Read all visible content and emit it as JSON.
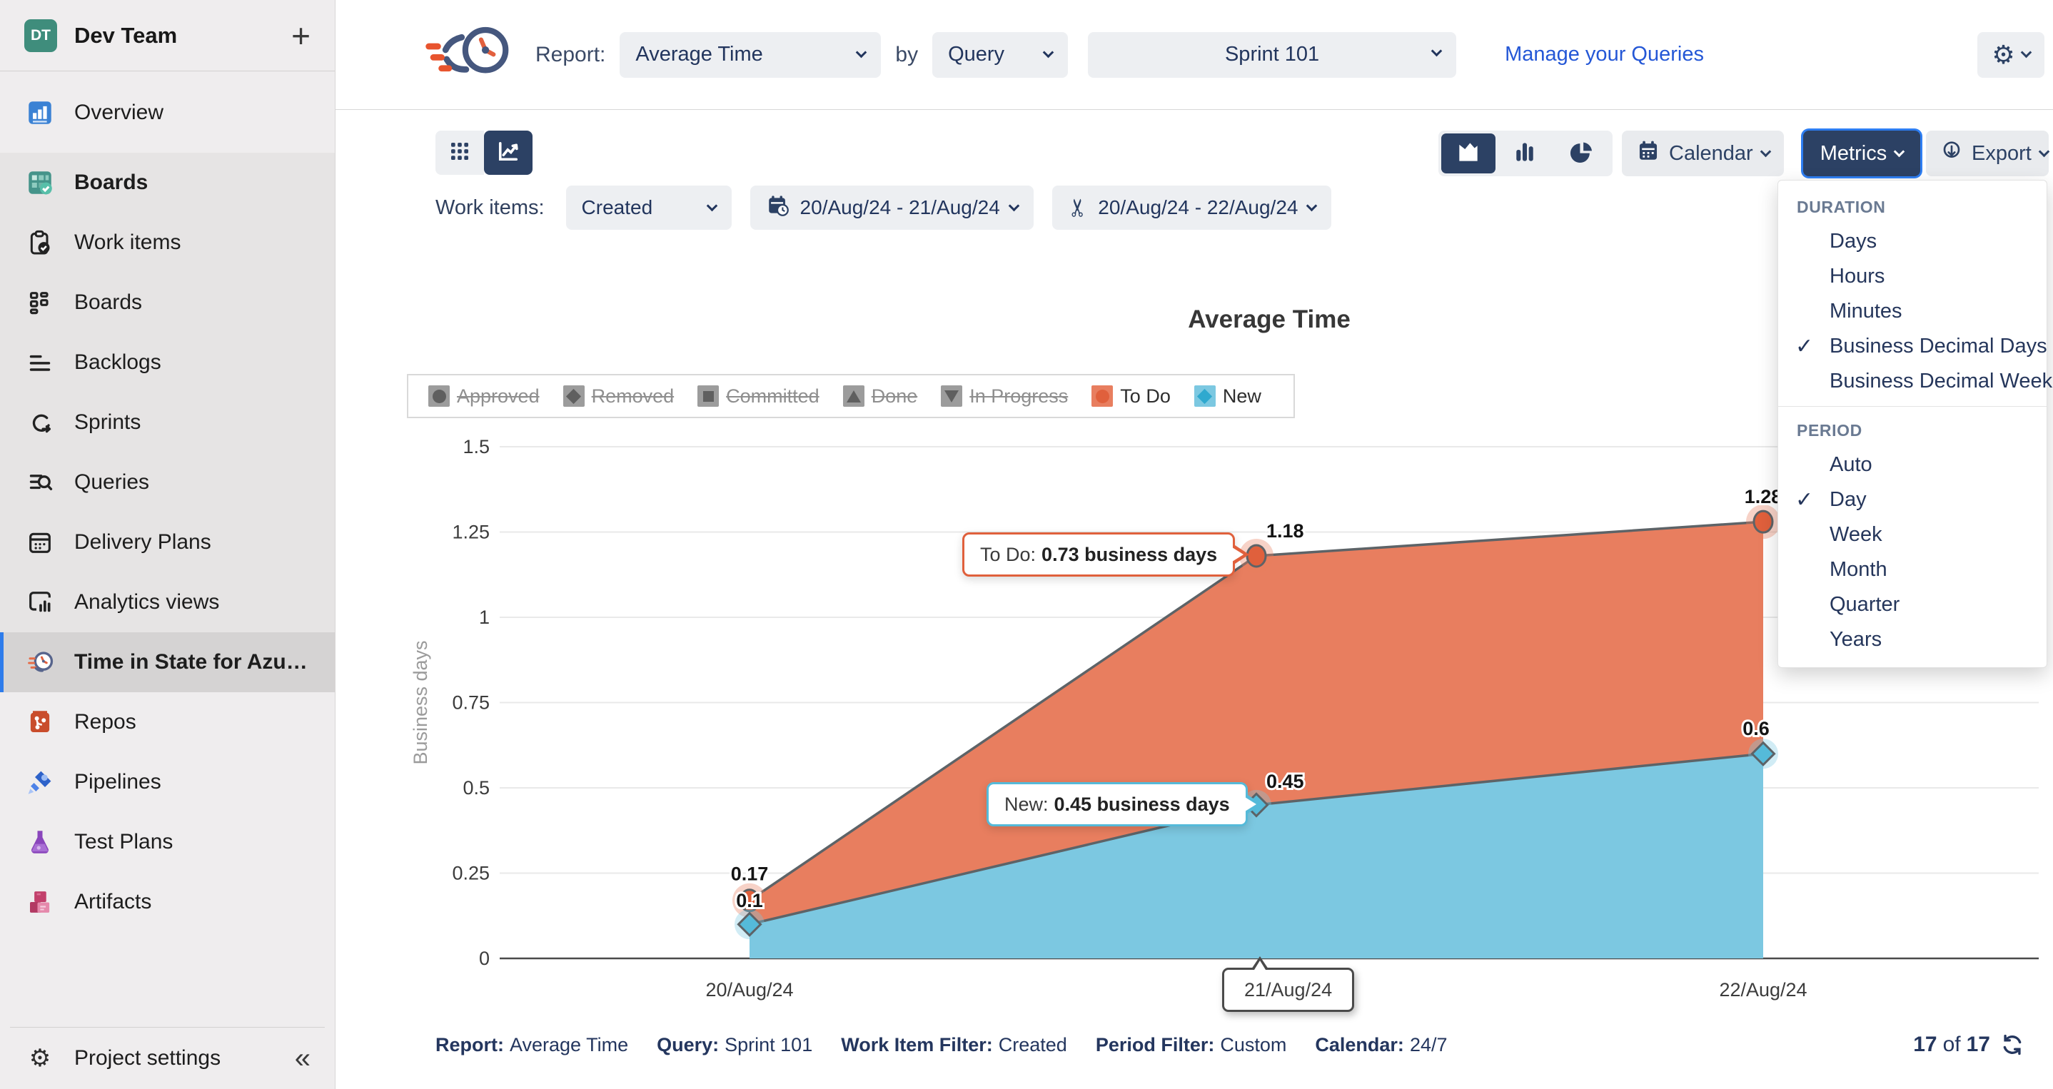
{
  "app": {
    "team_name": "Dev Team",
    "avatar_initials": "DT",
    "add_glyph": "+"
  },
  "sidebar": {
    "items": [
      {
        "id": "overview",
        "label": "Overview",
        "icon": "overview-icon",
        "group": false,
        "bold": false,
        "selected": false
      },
      {
        "id": "boards-hub",
        "label": "Boards",
        "icon": "boards-hub-icon",
        "group": true,
        "bold": true,
        "selected": false
      },
      {
        "id": "work-items",
        "label": "Work items",
        "icon": "work-items-icon",
        "group": true,
        "bold": false,
        "selected": false
      },
      {
        "id": "boards",
        "label": "Boards",
        "icon": "boards-icon",
        "group": true,
        "bold": false,
        "selected": false
      },
      {
        "id": "backlogs",
        "label": "Backlogs",
        "icon": "backlogs-icon",
        "group": true,
        "bold": false,
        "selected": false
      },
      {
        "id": "sprints",
        "label": "Sprints",
        "icon": "sprints-icon",
        "group": true,
        "bold": false,
        "selected": false
      },
      {
        "id": "queries",
        "label": "Queries",
        "icon": "queries-icon",
        "group": true,
        "bold": false,
        "selected": false
      },
      {
        "id": "delivery-plans",
        "label": "Delivery Plans",
        "icon": "delivery-plans-icon",
        "group": true,
        "bold": false,
        "selected": false
      },
      {
        "id": "analytics-views",
        "label": "Analytics views",
        "icon": "analytics-views-icon",
        "group": true,
        "bold": false,
        "selected": false
      },
      {
        "id": "time-in-state",
        "label": "Time in State for Azure DevO...",
        "icon": "time-in-state-icon",
        "group": true,
        "bold": true,
        "selected": true
      },
      {
        "id": "repos",
        "label": "Repos",
        "icon": "repos-icon",
        "group": false,
        "bold": false,
        "selected": false
      },
      {
        "id": "pipelines",
        "label": "Pipelines",
        "icon": "pipelines-icon",
        "group": false,
        "bold": false,
        "selected": false
      },
      {
        "id": "test-plans",
        "label": "Test Plans",
        "icon": "test-plans-icon",
        "group": false,
        "bold": false,
        "selected": false
      },
      {
        "id": "artifacts",
        "label": "Artifacts",
        "icon": "artifacts-icon",
        "group": false,
        "bold": false,
        "selected": false
      }
    ],
    "footer": {
      "label": "Project settings",
      "collapse_glyph": "«",
      "gear_glyph": "⚙"
    }
  },
  "header": {
    "report_label": "Report:",
    "report_value": "Average Time",
    "by_label": "by",
    "group_by_value": "Query",
    "query_value": "Sprint 101",
    "manage_link": "Manage your Queries",
    "gear_glyph": "⚙"
  },
  "toolbar": {
    "work_items_label": "Work items:",
    "work_items_value": "Created",
    "date_range_created": "20/Aug/24 - 21/Aug/24",
    "date_range_interval": "20/Aug/24 - 22/Aug/24",
    "calendar_label": "Calendar",
    "metrics_label": "Metrics",
    "export_label": "Export",
    "scissors_glyph": "✂"
  },
  "metrics_menu": {
    "sections": [
      {
        "title": "DURATION",
        "items": [
          {
            "label": "Days",
            "checked": false
          },
          {
            "label": "Hours",
            "checked": false
          },
          {
            "label": "Minutes",
            "checked": false
          },
          {
            "label": "Business Decimal Days",
            "checked": true
          },
          {
            "label": "Business Decimal Weeks",
            "checked": false
          }
        ]
      },
      {
        "title": "PERIOD",
        "items": [
          {
            "label": "Auto",
            "checked": false
          },
          {
            "label": "Day",
            "checked": true
          },
          {
            "label": "Week",
            "checked": false
          },
          {
            "label": "Month",
            "checked": false
          },
          {
            "label": "Quarter",
            "checked": false
          },
          {
            "label": "Years",
            "checked": false
          }
        ]
      }
    ],
    "check_glyph": "✓"
  },
  "chart_data": {
    "type": "area",
    "title": "Average Time",
    "ylabel": "Business days",
    "x": [
      "20/Aug/24",
      "21/Aug/24",
      "22/Aug/24"
    ],
    "ylim": [
      0,
      1.5
    ],
    "yticks": [
      0,
      0.25,
      0.5,
      0.75,
      1,
      1.25,
      1.5
    ],
    "grid": true,
    "legend_position": "top",
    "series": [
      {
        "name": "To Do",
        "color": "#E87E5F",
        "line_color": "#5D6367",
        "marker": "circle",
        "marker_color": "#E0603C",
        "values": [
          0.17,
          1.18,
          1.28
        ],
        "labels": [
          "0.17",
          "1.18",
          "1.28"
        ]
      },
      {
        "name": "New",
        "color": "#7CC8E1",
        "line_color": "#5D6367",
        "marker": "diamond",
        "marker_color": "#55BAD9",
        "values": [
          0.1,
          0.45,
          0.6
        ],
        "labels": [
          "0.1",
          "0.45",
          "0.6"
        ]
      }
    ],
    "legend": [
      {
        "label": "Approved",
        "shape": "circle",
        "disabled": true,
        "swatch": "#9c9c9c",
        "shape_color": "#5f5f5f"
      },
      {
        "label": "Removed",
        "shape": "diamond",
        "disabled": true,
        "swatch": "#9c9c9c",
        "shape_color": "#5f5f5f"
      },
      {
        "label": "Committed",
        "shape": "square",
        "disabled": true,
        "swatch": "#9c9c9c",
        "shape_color": "#5f5f5f"
      },
      {
        "label": "Done",
        "shape": "triangle",
        "disabled": true,
        "swatch": "#9c9c9c",
        "shape_color": "#5f5f5f"
      },
      {
        "label": "In Progress",
        "shape": "triangle-down",
        "disabled": true,
        "swatch": "#9c9c9c",
        "shape_color": "#5f5f5f"
      },
      {
        "label": "To Do",
        "shape": "circle",
        "disabled": false,
        "swatch": "#E87E5F",
        "shape_color": "#E0603C"
      },
      {
        "label": "New",
        "shape": "diamond",
        "disabled": false,
        "swatch": "#7CC8E1",
        "shape_color": "#2FA9CF"
      }
    ],
    "tooltips": [
      {
        "series": "To Do",
        "text_label": "To Do: ",
        "text_value": "0.73 business days",
        "point_index": 1
      },
      {
        "series": "New",
        "text_label": "New: ",
        "text_value": "0.45 business days",
        "point_index": 1
      }
    ],
    "x_callout": "21/Aug/24"
  },
  "footer": {
    "segments": [
      {
        "label": "Report:",
        "value": "Average Time"
      },
      {
        "label": "Query:",
        "value": "Sprint 101"
      },
      {
        "label": "Work Item Filter:",
        "value": "Created"
      },
      {
        "label": "Period Filter:",
        "value": "Custom"
      },
      {
        "label": "Calendar:",
        "value": "24/7"
      }
    ],
    "count_from": "17",
    "of_label": "of",
    "count_total": "17"
  },
  "colors": {
    "accent_navy": "#2C4164",
    "focus_ring": "#2E7EF2",
    "link_blue": "#2457D6",
    "todo_fill": "#E87E5F",
    "todo_marker": "#E0603C",
    "new_fill": "#7CC8E1",
    "new_marker": "#55BAD9",
    "sidebar_bg": "#EFEDEE",
    "sidebar_group_bg": "#E6E4E4",
    "sidebar_selected_bg": "#D5D3D3",
    "selected_bar_blue": "#2E7CEB"
  }
}
